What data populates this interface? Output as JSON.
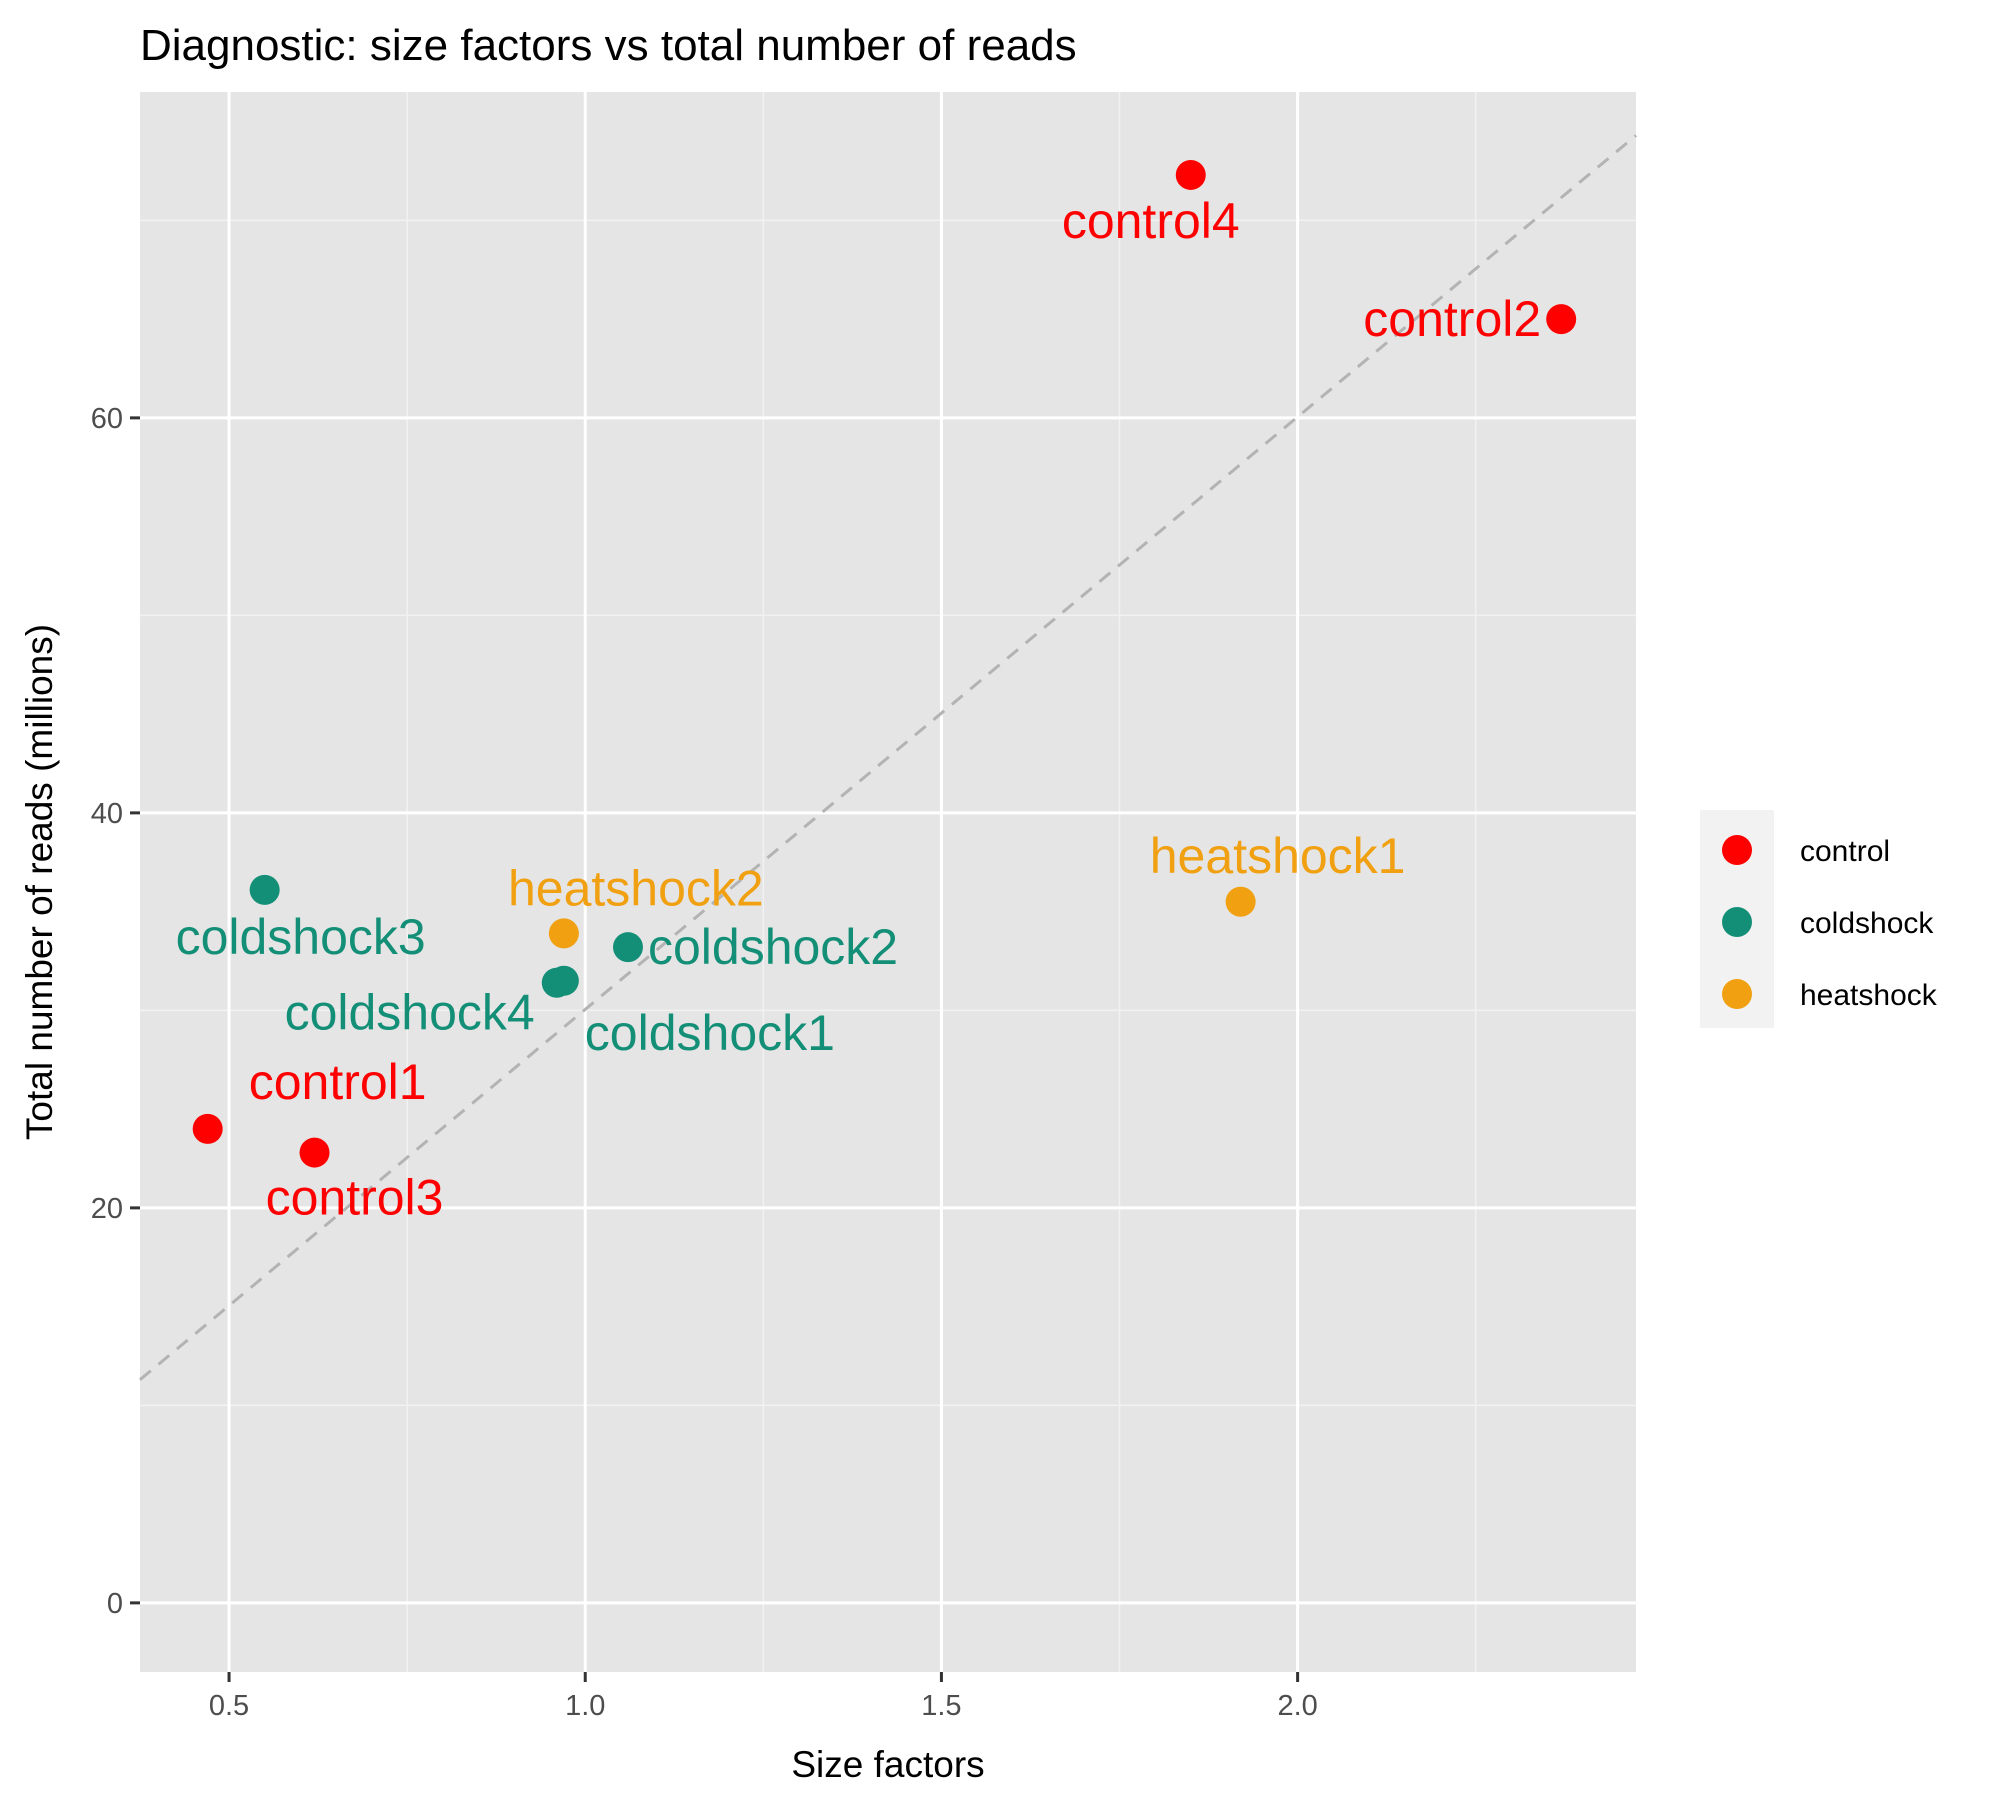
{
  "chart_data": {
    "type": "scatter",
    "title": "Diagnostic: size factors vs total number of reads",
    "xlabel": "Size factors",
    "ylabel": "Total number of reads (millions)",
    "xlim": [
      0.375,
      2.475
    ],
    "ylim": [
      -3.5,
      76.5
    ],
    "x_ticks": [
      0.5,
      1.0,
      1.5,
      2.0
    ],
    "x_tick_labels": [
      "0.5",
      "1.0",
      "1.5",
      "2.0"
    ],
    "y_ticks": [
      0,
      20,
      40,
      60
    ],
    "y_tick_labels": [
      "0",
      "20",
      "40",
      "60"
    ],
    "grid": true,
    "legend_position": "right",
    "reference_line": {
      "style": "dashed",
      "color": "#b3b3b3",
      "from": [
        0.375,
        11.3
      ],
      "to": [
        2.475,
        74.3
      ]
    },
    "groups": [
      {
        "name": "control",
        "color": "#FF0000"
      },
      {
        "name": "coldshock",
        "color": "#148F77"
      },
      {
        "name": "heatshock",
        "color": "#F0A010"
      }
    ],
    "points": [
      {
        "label": "control1",
        "group": "control",
        "x": 0.47,
        "y": 24.0
      },
      {
        "label": "control2",
        "group": "control",
        "x": 2.37,
        "y": 65.0
      },
      {
        "label": "control3",
        "group": "control",
        "x": 0.62,
        "y": 22.8
      },
      {
        "label": "control4",
        "group": "control",
        "x": 1.85,
        "y": 72.3
      },
      {
        "label": "coldshock1",
        "group": "coldshock",
        "x": 0.97,
        "y": 31.5
      },
      {
        "label": "coldshock2",
        "group": "coldshock",
        "x": 1.06,
        "y": 33.2
      },
      {
        "label": "coldshock3",
        "group": "coldshock",
        "x": 0.55,
        "y": 36.1
      },
      {
        "label": "coldshock4",
        "group": "coldshock",
        "x": 0.96,
        "y": 31.4
      },
      {
        "label": "heatshock1",
        "group": "heatshock",
        "x": 1.92,
        "y": 35.5
      },
      {
        "label": "heatshock2",
        "group": "heatshock",
        "x": 0.97,
        "y": 33.9
      }
    ]
  }
}
